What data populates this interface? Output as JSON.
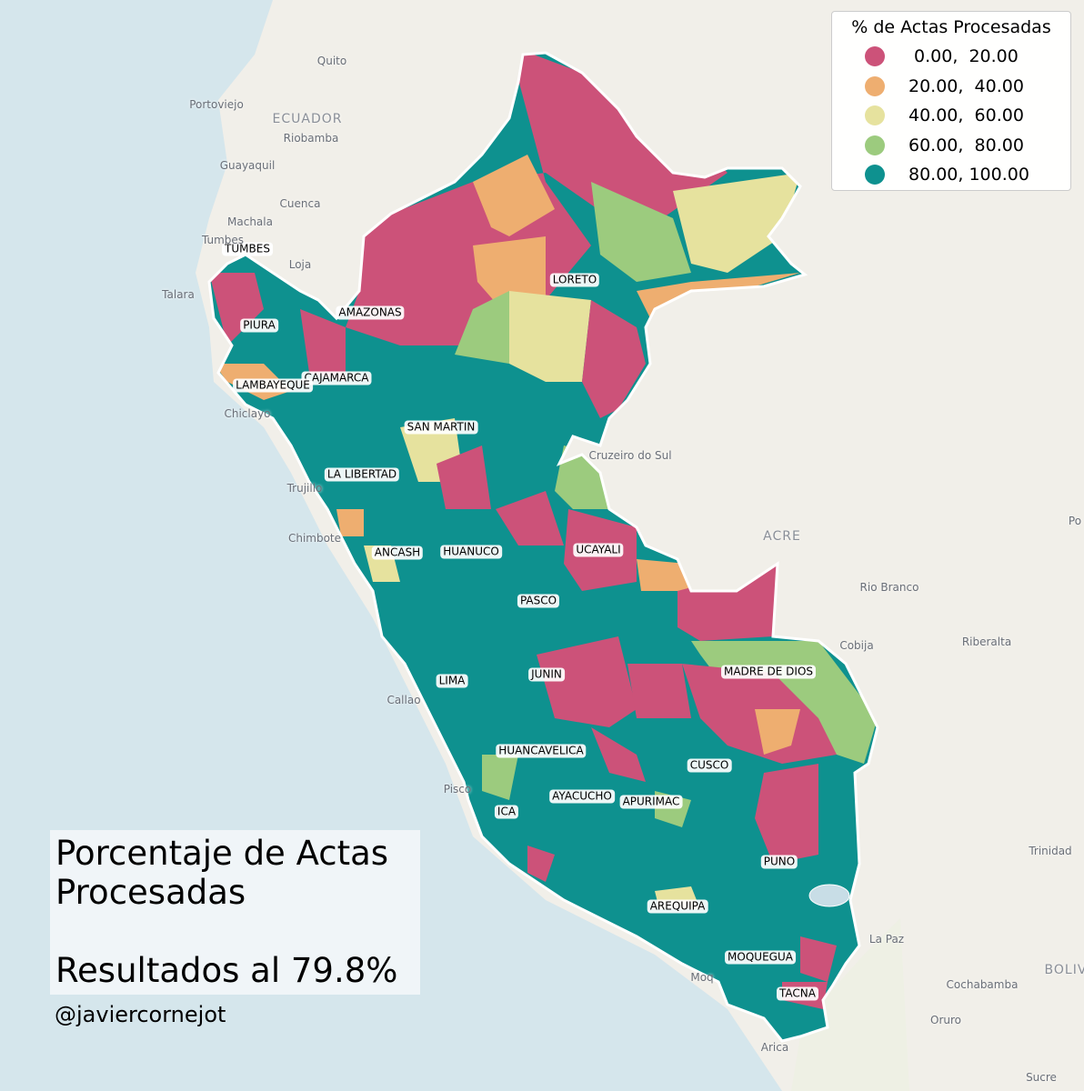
{
  "legend": {
    "title": "% de Actas Procesadas",
    "items": [
      {
        "label": " 0.00,  20.00",
        "color": "#cc5279"
      },
      {
        "label": "20.00,  40.00",
        "color": "#eeae70"
      },
      {
        "label": "40.00,  60.00",
        "color": "#e6e29e"
      },
      {
        "label": "60.00,  80.00",
        "color": "#9ccb7e"
      },
      {
        "label": "80.00, 100.00",
        "color": "#0e918f"
      }
    ]
  },
  "title_box": {
    "title": "Porcentaje de Actas Procesadas",
    "subtitle": "Resultados al 79.8%"
  },
  "attribution": "@javiercornejot",
  "regions": [
    "TUMBES",
    "PIURA",
    "AMAZONAS",
    "CAJAMARCA",
    "LAMBAYEQUE",
    "LORETO",
    "SAN MARTIN",
    "LA LIBERTAD",
    "ANCASH",
    "HUANUCO",
    "UCAYALI",
    "PASCO",
    "LIMA",
    "JUNIN",
    "MADRE DE DIOS",
    "HUANCAVELICA",
    "CUSCO",
    "AYACUCHO",
    "APURIMAC",
    "ICA",
    "PUNO",
    "AREQUIPA",
    "MOQUEGUA",
    "TACNA"
  ],
  "basemap_labels": [
    "Quito",
    "Portoviejo",
    "ECUADOR",
    "Riobamba",
    "Guayaquil",
    "Cuenca",
    "Machala",
    "Tumbes",
    "Loja",
    "Talara",
    "Chiclayo",
    "Trujillo",
    "Chimbote",
    "Callao",
    "Pisco",
    "Cruzeiro do Sul",
    "ACRE",
    "Rio Branco",
    "Cobija",
    "Riberalta",
    "Trinidad",
    "La Paz",
    "Cochabamba",
    "Oruro",
    "Arica",
    "Sucre",
    "BOLIV",
    "Po",
    "Moq"
  ]
}
